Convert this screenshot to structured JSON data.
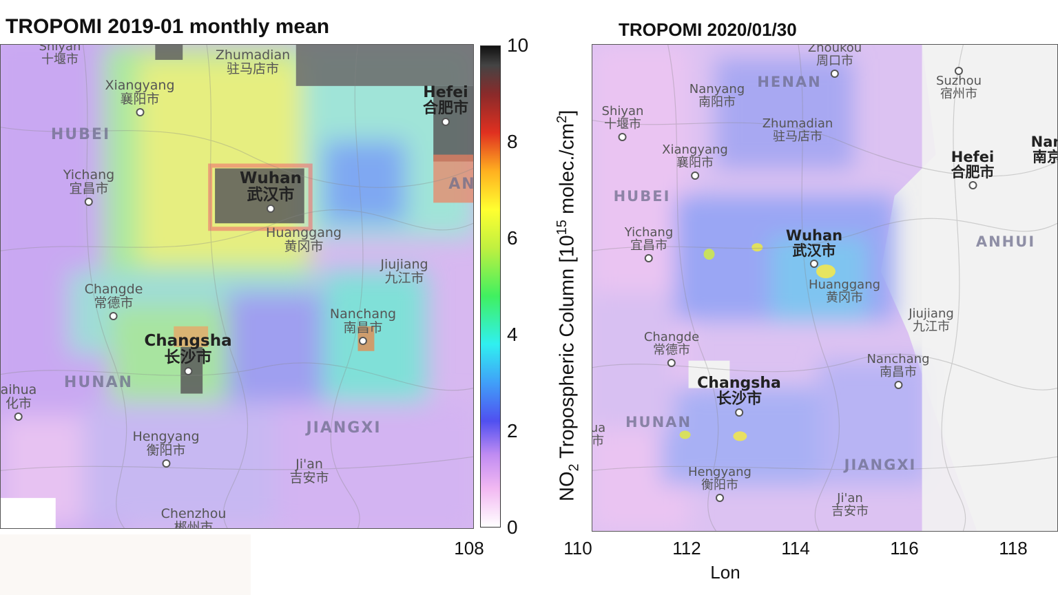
{
  "left_panel": {
    "title": "TROPOMI 2019-01 monthly mean",
    "places": [
      {
        "en": "Shiyan",
        "zh": "十堰市",
        "cls": ""
      },
      {
        "en": "Zhumadian",
        "zh": "驻马店市",
        "cls": ""
      },
      {
        "en": "Xiangyang",
        "zh": "襄阳市",
        "cls": ""
      },
      {
        "en": "Hefei",
        "zh": "合肥市",
        "cls": "big"
      },
      {
        "en": "Yichang",
        "zh": "宜昌市",
        "cls": ""
      },
      {
        "en": "Wuhan",
        "zh": "武汉市",
        "cls": "big"
      },
      {
        "en": "Huanggang",
        "zh": "黄冈市",
        "cls": ""
      },
      {
        "en": "Jiujiang",
        "zh": "九江市",
        "cls": ""
      },
      {
        "en": "Changde",
        "zh": "常德市",
        "cls": ""
      },
      {
        "en": "Nanchang",
        "zh": "南昌市",
        "cls": ""
      },
      {
        "en": "Changsha",
        "zh": "长沙市",
        "cls": "big"
      },
      {
        "en": "aihua",
        "zh": "化市",
        "cls": ""
      },
      {
        "en": "Hengyang",
        "zh": "衡阳市",
        "cls": ""
      },
      {
        "en": "Ji'an",
        "zh": "吉安市",
        "cls": ""
      },
      {
        "en": "Chenzhou",
        "zh": "郴州市",
        "cls": ""
      }
    ],
    "provinces": [
      "HUBEI",
      "HUNAN",
      "JIANGXI",
      "AN"
    ]
  },
  "right_panel": {
    "title": "TROPOMI 2020/01/30",
    "places": [
      {
        "en": "Zhoukou",
        "zh": "周口市",
        "cls": ""
      },
      {
        "en": "Nanyang",
        "zh": "南阳市",
        "cls": ""
      },
      {
        "en": "Suzhou",
        "zh": "宿州市",
        "cls": ""
      },
      {
        "en": "Shiyan",
        "zh": "十堰市",
        "cls": ""
      },
      {
        "en": "Zhumadian",
        "zh": "驻马店市",
        "cls": ""
      },
      {
        "en": "Xiangyang",
        "zh": "襄阳市",
        "cls": ""
      },
      {
        "en": "Hefei",
        "zh": "合肥市",
        "cls": "big"
      },
      {
        "en": "Nan",
        "zh": "南京",
        "cls": "big"
      },
      {
        "en": "Yichang",
        "zh": "宜昌市",
        "cls": ""
      },
      {
        "en": "Wuhan",
        "zh": "武汉市",
        "cls": "big"
      },
      {
        "en": "Huanggang",
        "zh": "黄冈市",
        "cls": ""
      },
      {
        "en": "Jiujiang",
        "zh": "九江市",
        "cls": ""
      },
      {
        "en": "Changde",
        "zh": "常德市",
        "cls": ""
      },
      {
        "en": "Nanchang",
        "zh": "南昌市",
        "cls": ""
      },
      {
        "en": "Changsha",
        "zh": "长沙市",
        "cls": "big"
      },
      {
        "en": "ua",
        "zh": "市",
        "cls": ""
      },
      {
        "en": "Hengyang",
        "zh": "衡阳市",
        "cls": ""
      },
      {
        "en": "Ji'an",
        "zh": "吉安市",
        "cls": ""
      }
    ],
    "provinces": [
      "HENAN",
      "HUBEI",
      "ANHUI",
      "HUNAN",
      "JIANGXI"
    ]
  },
  "colorbar": {
    "label_prefix": "NO",
    "label_sub": "2",
    "label_main": " Tropospheric Column [10",
    "label_sup": "15",
    "label_unit": " molec./cm",
    "label_sup2": "2",
    "label_end": "]",
    "ticks": [
      "0",
      "2",
      "4",
      "6",
      "8",
      "10"
    ]
  },
  "x_axis": {
    "label": "Lon",
    "ticks_left": [
      "108"
    ],
    "ticks_right": [
      "110",
      "112",
      "114",
      "116",
      "118"
    ]
  },
  "colors": {
    "low": "#f4c8f4",
    "mid": "#40e0e0",
    "high": "#ffff40",
    "max": "#404040"
  }
}
